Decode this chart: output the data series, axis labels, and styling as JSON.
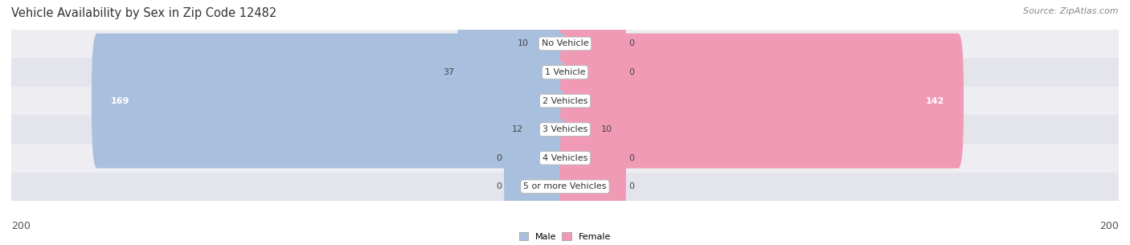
{
  "title": "Vehicle Availability by Sex in Zip Code 12482",
  "source": "Source: ZipAtlas.com",
  "categories": [
    "No Vehicle",
    "1 Vehicle",
    "2 Vehicles",
    "3 Vehicles",
    "4 Vehicles",
    "5 or more Vehicles"
  ],
  "male_values": [
    10,
    37,
    169,
    12,
    0,
    0
  ],
  "female_values": [
    0,
    0,
    142,
    10,
    0,
    0
  ],
  "male_color": "#a8c0de",
  "female_color": "#f09ab5",
  "row_bg_even": "#ededf2",
  "row_bg_odd": "#e4e4ec",
  "max_value": 200,
  "title_fontsize": 10.5,
  "source_fontsize": 8,
  "label_fontsize": 8,
  "value_fontsize": 8,
  "axis_label_fontsize": 9,
  "figsize": [
    14.06,
    3.05
  ],
  "dpi": 100,
  "default_bar_width": 20
}
